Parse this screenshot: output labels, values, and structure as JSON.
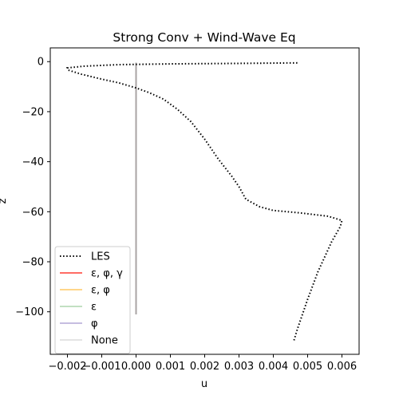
{
  "chart_data": {
    "type": "line",
    "title": "Strong Conv + Wind-Wave Eq",
    "xlabel": "u",
    "ylabel": "z",
    "xlim": [
      -0.0025,
      0.0065
    ],
    "ylim": [
      -117,
      5.5
    ],
    "xticks": [
      -0.002,
      -0.001,
      0.0,
      0.001,
      0.002,
      0.003,
      0.004,
      0.005,
      0.006
    ],
    "xtick_labels": [
      "−0.002",
      "−0.001",
      "0.000",
      "0.001",
      "0.002",
      "0.003",
      "0.004",
      "0.005",
      "0.006"
    ],
    "yticks": [
      0,
      -20,
      -40,
      -60,
      -80,
      -100
    ],
    "ytick_labels": [
      "0",
      "−20",
      "−40",
      "−60",
      "−80",
      "−100"
    ],
    "grid": false,
    "legend_position": "lower-left",
    "series": [
      {
        "name": "LES",
        "color": "#000000",
        "style": "dotted",
        "x": [
          0.0047,
          0.003,
          0.001,
          -0.0005,
          -0.0015,
          -0.002,
          -0.00195,
          -0.0016,
          -0.001,
          -0.0005,
          0.0,
          0.0004,
          0.0008,
          0.0012,
          0.0016,
          0.002,
          0.0024,
          0.0028,
          0.003,
          0.0032,
          0.0036,
          0.004,
          0.0048,
          0.0056,
          0.006,
          0.00595,
          0.0057,
          0.0053,
          0.005,
          0.0048,
          0.0047,
          0.0046
        ],
        "y": [
          -0.5,
          -0.7,
          -0.9,
          -1.2,
          -1.8,
          -2.5,
          -3.5,
          -5,
          -7,
          -8.5,
          -10.5,
          -12.5,
          -15,
          -19,
          -24,
          -31,
          -39,
          -46,
          -50,
          -55,
          -58,
          -59.5,
          -60.5,
          -61.8,
          -63.5,
          -66,
          -72,
          -84,
          -95,
          -103,
          -107,
          -111.5
        ]
      },
      {
        "name": "ε, φ, γ",
        "color": "#ff3b30",
        "x": [
          0.0,
          0.0
        ],
        "y": [
          -0.5,
          -101
        ]
      },
      {
        "name": "ε, φ",
        "color": "#ffc864",
        "x": [
          0.0,
          0.0
        ],
        "y": [
          -0.5,
          -101
        ]
      },
      {
        "name": "ε",
        "color": "#aed6ae",
        "x": [
          0.0,
          0.0
        ],
        "y": [
          -0.5,
          -101
        ]
      },
      {
        "name": "φ",
        "color": "#b4a7d6",
        "x": [
          0.0,
          0.0
        ],
        "y": [
          -0.5,
          -101
        ]
      },
      {
        "name": "None",
        "color": "#dcdcdc",
        "x": [
          0.0,
          0.0
        ],
        "y": [
          -0.5,
          -101
        ]
      }
    ],
    "overlap_line_color": "#a8a4a4"
  }
}
